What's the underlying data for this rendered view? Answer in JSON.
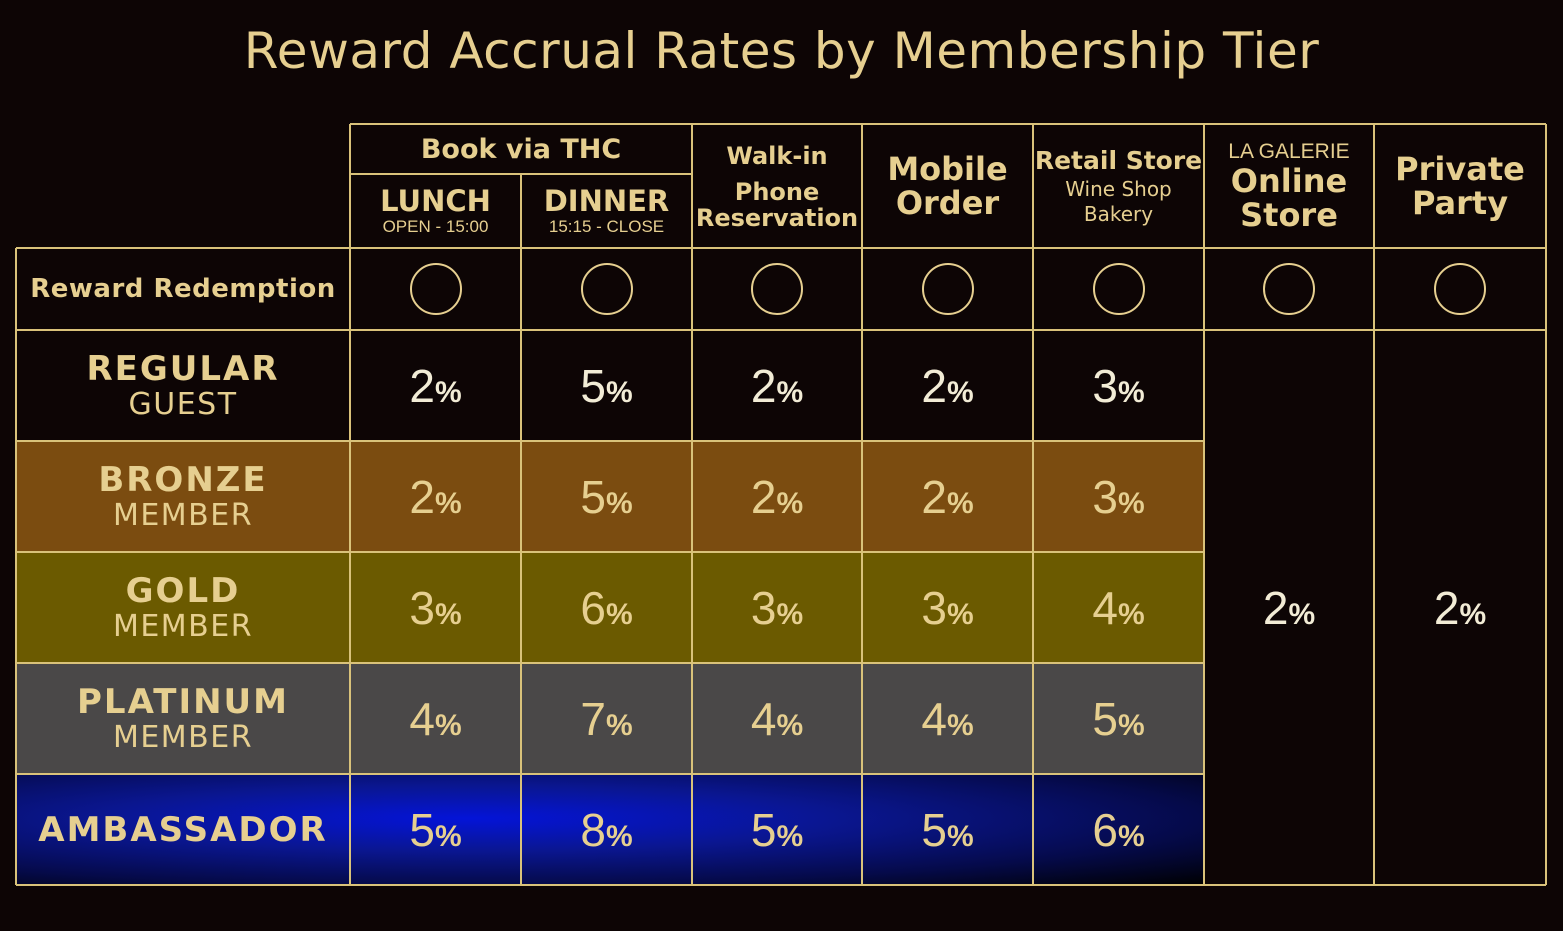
{
  "title": "Reward Accrual Rates by Membership Tier",
  "header": {
    "book_via": "Book via THC",
    "lunch": {
      "name": "LUNCH",
      "hours": "OPEN - 15:00"
    },
    "dinner": {
      "name": "DINNER",
      "hours": "15:15 - CLOSE"
    },
    "walkin": {
      "line1": "Walk-in",
      "line2": "Phone",
      "line3": "Reservation"
    },
    "mobile": {
      "line1": "Mobile",
      "line2": "Order"
    },
    "retail": {
      "line1": "Retail Store",
      "line2": "Wine Shop",
      "line3": "Bakery"
    },
    "online": {
      "line1": "LA GALERIE",
      "line2": "Online",
      "line3": "Store"
    },
    "party": {
      "line1": "Private",
      "line2": "Party"
    }
  },
  "redemption_label": "Reward Redemption",
  "redemption_symbol": "circle",
  "percent_sign": "%",
  "tiers": [
    {
      "name": "REGULAR",
      "sub": "GUEST",
      "rates": [
        "2",
        "5",
        "2",
        "2",
        "3"
      ],
      "color": "#0d0505"
    },
    {
      "name": "BRONZE",
      "sub": "MEMBER",
      "rates": [
        "2",
        "5",
        "2",
        "2",
        "3"
      ],
      "color": "#7b4c10"
    },
    {
      "name": "GOLD",
      "sub": "MEMBER",
      "rates": [
        "3",
        "6",
        "3",
        "3",
        "4"
      ],
      "color": "#6b5a00"
    },
    {
      "name": "PLATINUM",
      "sub": "MEMBER",
      "rates": [
        "4",
        "7",
        "4",
        "4",
        "5"
      ],
      "color": "#4a4848"
    },
    {
      "name": "AMBASSADOR",
      "sub": "",
      "rates": [
        "5",
        "8",
        "5",
        "5",
        "6"
      ],
      "color": "#0a1a8a"
    }
  ],
  "online_rate": "2",
  "party_rate": "2"
}
